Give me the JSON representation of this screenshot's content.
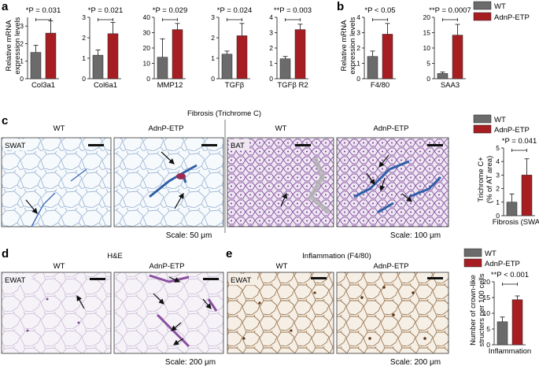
{
  "panel_labels": {
    "a": "a",
    "b": "b",
    "c": "c",
    "d": "d",
    "e": "e"
  },
  "legend": {
    "wt": "WT",
    "adnp": "AdnP-ETP"
  },
  "colors": {
    "wt": "#6b6b6b",
    "adnp": "#a61e22",
    "trichrome_blue": "#2f5fa8",
    "he_purple": "#8a4fa0",
    "dab_brown": "#7a4a1e"
  },
  "panel_a": {
    "ylabel_line1": "Relative mRNA",
    "ylabel_line2": "expression levels"
  },
  "panel_b": {
    "ylabel_line1": "Relative mRNA",
    "ylabel_line2": "expression levels"
  },
  "panel_c": {
    "title": "Fibrosis (Trichrome C)",
    "wt_label_1": "WT",
    "adnp_label_1": "AdnP-ETP",
    "wt_label_2": "WT",
    "adnp_label_2": "AdnP-ETP",
    "depot_1": "SWAT",
    "depot_2": "BAT",
    "scale_1": "Scale: 50 μm",
    "scale_2": "Scale: 100 μm",
    "chart_ylabel_line1": "Trichrome C+",
    "chart_ylabel_line2": "(% of AT area)"
  },
  "panel_d": {
    "title": "H&E",
    "wt_label": "WT",
    "adnp_label": "AdnP-ETP",
    "depot": "EWAT",
    "scale": "Scale: 200 μm"
  },
  "panel_e": {
    "title": "Inflammation (F4/80)",
    "wt_label": "WT",
    "adnp_label": "AdnP-ETP",
    "depot": "EWAT",
    "scale": "Scale: 200 μm",
    "chart_ylabel_line1": "Number of crown-like",
    "chart_ylabel_line2": "structers per 100 cells"
  },
  "chart_data": [
    {
      "id": "a-col3a1",
      "type": "bar",
      "xlabel": "Col3a1",
      "stat": "*P = 0.031",
      "ylim": [
        0,
        3.5
      ],
      "yticks": [
        0,
        1,
        2,
        3
      ],
      "series": [
        {
          "name": "WT",
          "values": [
            1.5
          ],
          "error": [
            0.4
          ]
        },
        {
          "name": "AdnP-ETP",
          "values": [
            2.6
          ],
          "error": [
            0.7
          ]
        }
      ]
    },
    {
      "id": "a-col6a1",
      "type": "bar",
      "xlabel": "Col6a1",
      "stat": "*P = 0.021",
      "ylim": [
        0,
        3
      ],
      "yticks": [
        0,
        1,
        2,
        3
      ],
      "series": [
        {
          "name": "WT",
          "values": [
            1.15
          ],
          "error": [
            0.25
          ]
        },
        {
          "name": "AdnP-ETP",
          "values": [
            2.2
          ],
          "error": [
            0.55
          ]
        }
      ]
    },
    {
      "id": "a-mmp12",
      "type": "bar",
      "xlabel": "MMP12",
      "stat": "*P = 0.029",
      "ylim": [
        0,
        40
      ],
      "yticks": [
        0,
        10,
        20,
        30,
        40
      ],
      "series": [
        {
          "name": "WT",
          "values": [
            14
          ],
          "error": [
            12
          ]
        },
        {
          "name": "AdnP-ETP",
          "values": [
            32
          ],
          "error": [
            4
          ]
        }
      ]
    },
    {
      "id": "a-tgfb",
      "type": "bar",
      "xlabel": "TGFβ",
      "stat": "*P = 0.024",
      "ylim": [
        0,
        3
      ],
      "yticks": [
        0,
        1,
        2,
        3
      ],
      "series": [
        {
          "name": "WT",
          "values": [
            1.2
          ],
          "error": [
            0.15
          ]
        },
        {
          "name": "AdnP-ETP",
          "values": [
            2.1
          ],
          "error": [
            0.6
          ]
        }
      ]
    },
    {
      "id": "a-tgfbr2",
      "type": "bar",
      "xlabel": "TGFβ R2",
      "stat": "**P = 0.003",
      "ylim": [
        0,
        4
      ],
      "yticks": [
        0,
        1,
        2,
        3,
        4
      ],
      "series": [
        {
          "name": "WT",
          "values": [
            1.3
          ],
          "error": [
            0.15
          ]
        },
        {
          "name": "AdnP-ETP",
          "values": [
            3.2
          ],
          "error": [
            0.35
          ]
        }
      ]
    },
    {
      "id": "b-f480",
      "type": "bar",
      "xlabel": "F4/80",
      "stat": "*P < 0.05",
      "ylim": [
        0,
        4
      ],
      "yticks": [
        0,
        1,
        2,
        3,
        4
      ],
      "series": [
        {
          "name": "WT",
          "values": [
            1.45
          ],
          "error": [
            0.35
          ]
        },
        {
          "name": "AdnP-ETP",
          "values": [
            2.9
          ],
          "error": [
            0.7
          ]
        }
      ]
    },
    {
      "id": "b-saa3",
      "type": "bar",
      "xlabel": "SAA3",
      "stat": "**P = 0.0007",
      "ylim": [
        0,
        20
      ],
      "yticks": [
        0,
        5,
        10,
        15,
        20
      ],
      "series": [
        {
          "name": "WT",
          "values": [
            1.7
          ],
          "error": [
            0.5
          ]
        },
        {
          "name": "AdnP-ETP",
          "values": [
            14.2
          ],
          "error": [
            3.5
          ]
        }
      ]
    },
    {
      "id": "c-fibrosis",
      "type": "bar",
      "xlabel": "Fibrosis (SWAT)",
      "stat": "*P = 0.041",
      "ylim": [
        0,
        5
      ],
      "yticks": [
        0,
        1,
        2,
        3,
        4,
        5
      ],
      "series": [
        {
          "name": "WT",
          "values": [
            1.0
          ],
          "error": [
            0.6
          ]
        },
        {
          "name": "AdnP-ETP",
          "values": [
            3.0
          ],
          "error": [
            1.2
          ]
        }
      ]
    },
    {
      "id": "e-inflammation",
      "type": "bar",
      "xlabel": "Inflammation",
      "stat": "**P < 0.001",
      "ylim": [
        0,
        20
      ],
      "yticks": [
        0,
        5,
        10,
        15,
        20
      ],
      "series": [
        {
          "name": "WT",
          "values": [
            7.3
          ],
          "error": [
            1.5
          ]
        },
        {
          "name": "AdnP-ETP",
          "values": [
            14.3
          ],
          "error": [
            1.2
          ]
        }
      ]
    }
  ]
}
